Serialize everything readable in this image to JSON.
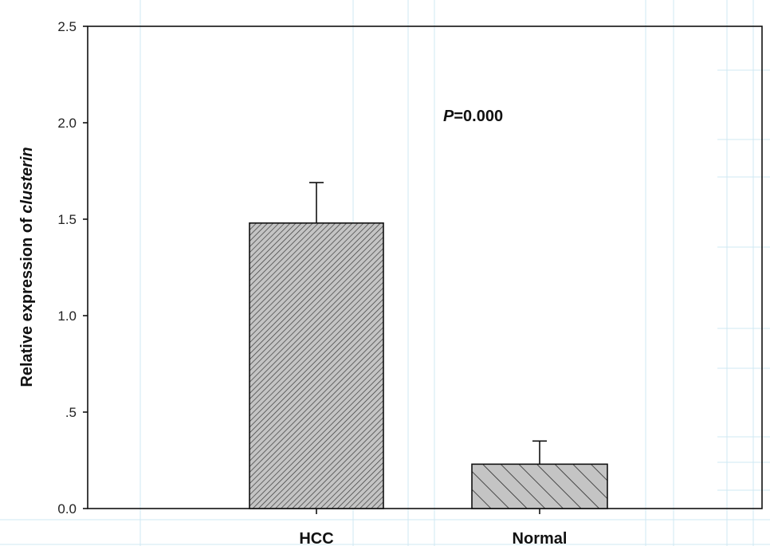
{
  "chart_data": {
    "type": "bar",
    "categories": [
      "HCC",
      "Normal"
    ],
    "values": [
      1.48,
      0.23
    ],
    "error_bars": [
      0.21,
      0.12
    ],
    "ylabel_prefix": "Relative expression of ",
    "ylabel_gene": "clusterin",
    "ylim": [
      0,
      2.5
    ],
    "yticks": [
      0.0,
      0.5,
      1.0,
      1.5,
      2.0,
      2.5
    ],
    "ytick_labels": [
      "0.0",
      ".5",
      "1.0",
      "1.5",
      "2.0",
      "2.5"
    ],
    "annotation": {
      "italic": "P",
      "rest": "=0.000"
    },
    "bar_fill": "#bdbdbd",
    "grid": false,
    "legend": "none"
  }
}
